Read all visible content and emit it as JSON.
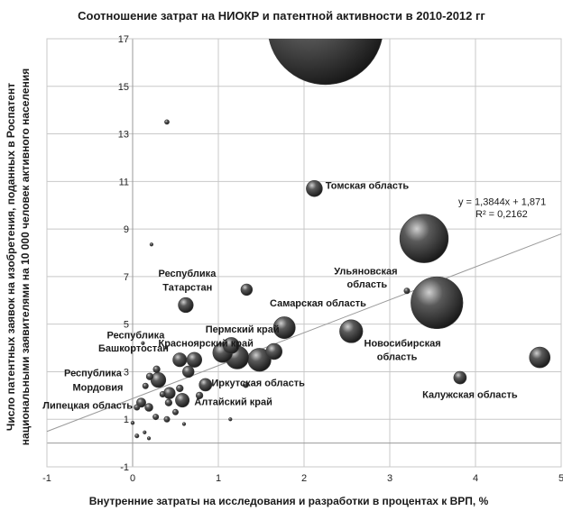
{
  "chart_data": {
    "type": "scatter",
    "subtype": "bubble",
    "title": "Соотношение затрат на НИОКР и патентной активности в 2010-2012 гг",
    "xlabel": "Внутренние затраты на исследования и разработки в процентах к ВРП, %",
    "ylabel_lines": [
      "Число патентных заявок на изобретения, поданных в Роспатент",
      "национальными заявителями на 10 000 человек активного населения"
    ],
    "xlim": [
      -1,
      5
    ],
    "ylim": [
      -1,
      17
    ],
    "x_ticks": [
      -1,
      0,
      1,
      2,
      3,
      4,
      5
    ],
    "y_ticks": [
      -1,
      1,
      3,
      5,
      7,
      9,
      11,
      13,
      15,
      17
    ],
    "grid": "major",
    "bubble_color": "#3a3a3a",
    "points": [
      {
        "x": 2.25,
        "y": 17.5,
        "r": 1.0
      },
      {
        "x": 3.4,
        "y": 8.6,
        "r": 0.42
      },
      {
        "x": 3.55,
        "y": 5.9,
        "r": 0.45
      },
      {
        "x": 2.12,
        "y": 10.7,
        "r": 0.14
      },
      {
        "x": 2.55,
        "y": 4.7,
        "r": 0.2
      },
      {
        "x": 4.75,
        "y": 3.6,
        "r": 0.18
      },
      {
        "x": 3.82,
        "y": 2.75,
        "r": 0.11
      },
      {
        "x": 1.77,
        "y": 4.85,
        "r": 0.19
      },
      {
        "x": 1.65,
        "y": 3.85,
        "r": 0.14
      },
      {
        "x": 1.48,
        "y": 3.5,
        "r": 0.2
      },
      {
        "x": 1.22,
        "y": 3.6,
        "r": 0.2
      },
      {
        "x": 1.05,
        "y": 3.8,
        "r": 0.17
      },
      {
        "x": 1.15,
        "y": 4.1,
        "r": 0.14
      },
      {
        "x": 0.72,
        "y": 3.5,
        "r": 0.13
      },
      {
        "x": 0.55,
        "y": 3.5,
        "r": 0.12
      },
      {
        "x": 0.65,
        "y": 3.0,
        "r": 0.1
      },
      {
        "x": 0.62,
        "y": 5.8,
        "r": 0.13
      },
      {
        "x": 1.33,
        "y": 6.45,
        "r": 0.1
      },
      {
        "x": 0.4,
        "y": 13.5,
        "r": 0.04
      },
      {
        "x": 0.22,
        "y": 8.35,
        "r": 0.02
      },
      {
        "x": 3.2,
        "y": 6.4,
        "r": 0.05
      },
      {
        "x": 0.3,
        "y": 2.65,
        "r": 0.13
      },
      {
        "x": 0.28,
        "y": 3.1,
        "r": 0.06
      },
      {
        "x": 0.2,
        "y": 2.8,
        "r": 0.06
      },
      {
        "x": 0.15,
        "y": 2.4,
        "r": 0.05
      },
      {
        "x": 0.43,
        "y": 2.1,
        "r": 0.1
      },
      {
        "x": 0.55,
        "y": 2.3,
        "r": 0.06
      },
      {
        "x": 0.58,
        "y": 1.8,
        "r": 0.12
      },
      {
        "x": 0.42,
        "y": 1.7,
        "r": 0.06
      },
      {
        "x": 0.5,
        "y": 1.3,
        "r": 0.05
      },
      {
        "x": 0.85,
        "y": 2.45,
        "r": 0.11
      },
      {
        "x": 0.78,
        "y": 2.0,
        "r": 0.06
      },
      {
        "x": 0.1,
        "y": 1.7,
        "r": 0.08
      },
      {
        "x": 0.19,
        "y": 1.5,
        "r": 0.07
      },
      {
        "x": 0.05,
        "y": 1.5,
        "r": 0.05
      },
      {
        "x": 0.27,
        "y": 1.1,
        "r": 0.05
      },
      {
        "x": 0.4,
        "y": 1.0,
        "r": 0.05
      },
      {
        "x": 0.0,
        "y": 0.85,
        "r": 0.03
      },
      {
        "x": 0.05,
        "y": 0.3,
        "r": 0.035
      },
      {
        "x": 0.14,
        "y": 0.45,
        "r": 0.025
      },
      {
        "x": 0.19,
        "y": 0.2,
        "r": 0.02
      },
      {
        "x": 0.6,
        "y": 0.8,
        "r": 0.025
      },
      {
        "x": 0.12,
        "y": 4.2,
        "r": 0.02
      },
      {
        "x": 1.14,
        "y": 1.0,
        "r": 0.015
      },
      {
        "x": 1.32,
        "y": 2.45,
        "r": 0.05
      },
      {
        "x": 0.35,
        "y": 2.05,
        "r": 0.05
      }
    ],
    "trendline": {
      "slope": 1.3844,
      "intercept": 1.871,
      "x_range": [
        -1,
        5
      ]
    },
    "annotations": [
      {
        "text": "Томская область",
        "x": 2.25,
        "y": 10.7
      },
      {
        "text": "y = 1,3844x + 1,871",
        "x": 3.8,
        "y": 10.0
      },
      {
        "text": "R² = 0,2162",
        "x": 4.0,
        "y": 9.5
      },
      {
        "text": "Ульяновская",
        "x": 2.35,
        "y": 7.1
      },
      {
        "text": "область",
        "x": 2.5,
        "y": 6.55
      },
      {
        "text": "Республика",
        "x": 0.3,
        "y": 7.0
      },
      {
        "text": "Татарстан",
        "x": 0.35,
        "y": 6.4
      },
      {
        "text": "Самарская область",
        "x": 1.6,
        "y": 5.75
      },
      {
        "text": "Пермский край",
        "x": 0.85,
        "y": 4.65
      },
      {
        "text": "Республика",
        "x": -0.3,
        "y": 4.4
      },
      {
        "text": "Красноярский край",
        "x": 0.3,
        "y": 4.05
      },
      {
        "text": "Башкортостан",
        "x": -0.4,
        "y": 3.85
      },
      {
        "text": "Новосибирская",
        "x": 2.7,
        "y": 4.05
      },
      {
        "text": "область",
        "x": 2.85,
        "y": 3.5
      },
      {
        "text": "Республика",
        "x": -0.8,
        "y": 2.8
      },
      {
        "text": "Иркутская область",
        "x": 0.92,
        "y": 2.4
      },
      {
        "text": "Мордовия",
        "x": -0.7,
        "y": 2.2
      },
      {
        "text": "Калужская область",
        "x": 3.38,
        "y": 1.9
      },
      {
        "text": "Алтайский край",
        "x": 0.72,
        "y": 1.6
      },
      {
        "text": "Липецкая область",
        "x": -1.05,
        "y": 1.45
      }
    ]
  }
}
